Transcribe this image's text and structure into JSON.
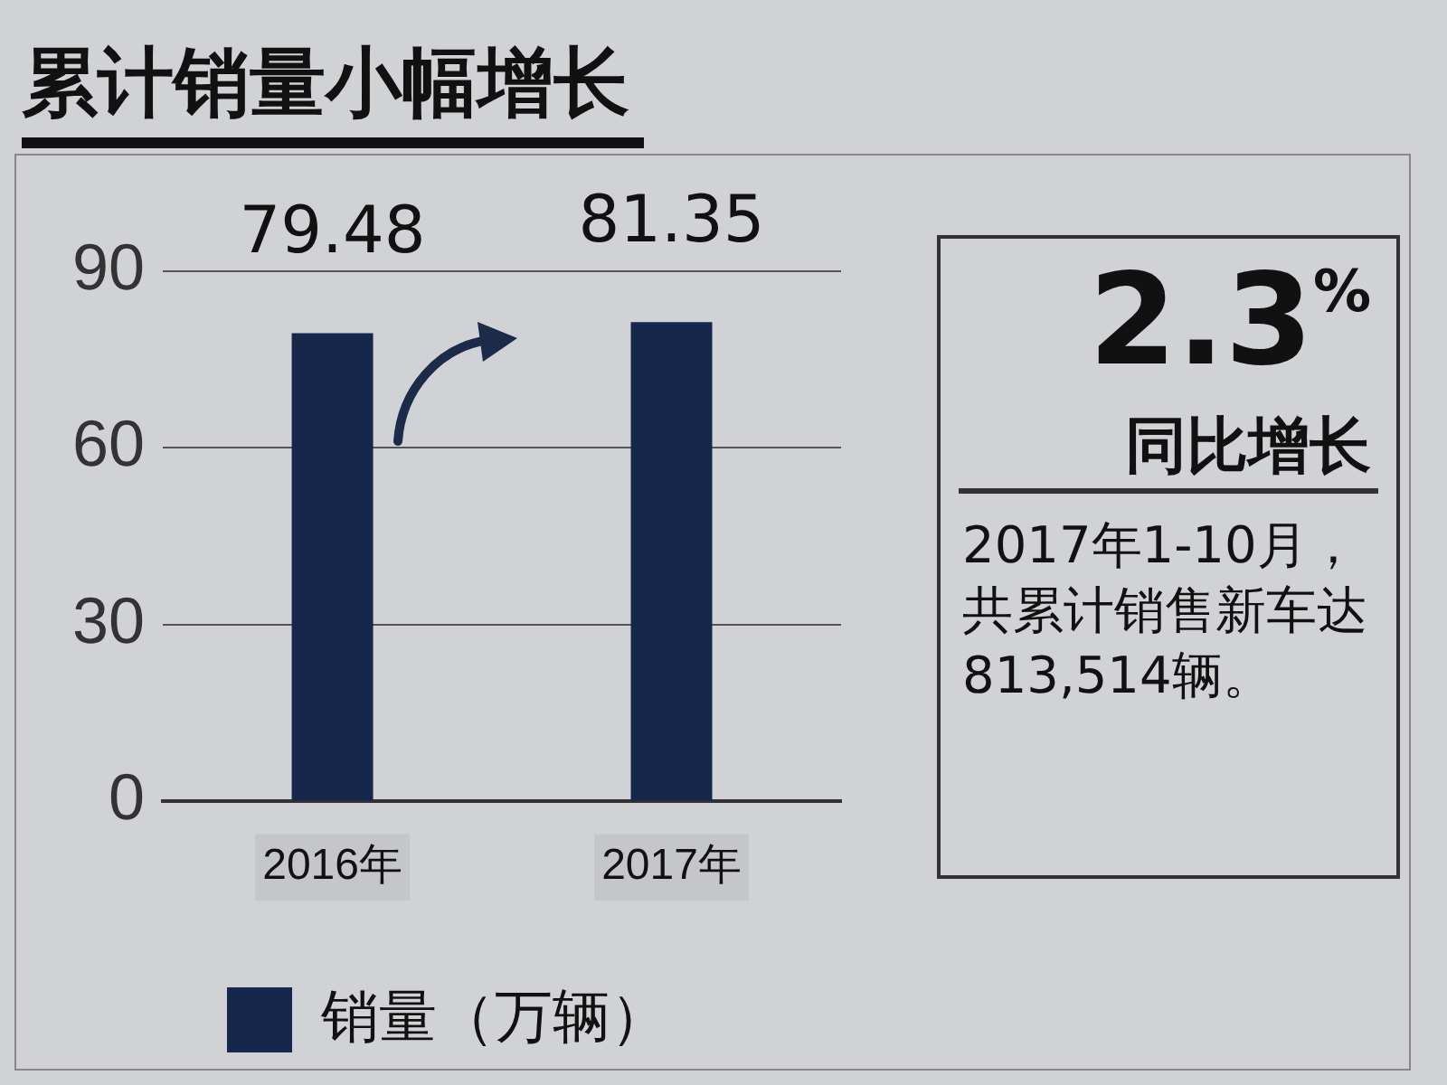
{
  "chart_data": {
    "type": "bar",
    "title": "累计销量小幅增长",
    "categories": [
      "2016年",
      "2017年"
    ],
    "series": [
      {
        "name": "销量（万辆）",
        "color": "#15274a",
        "values": [
          79.48,
          81.35
        ]
      }
    ],
    "ylim": [
      0,
      90
    ],
    "yticks": [
      0,
      30,
      60,
      90
    ],
    "grid": "y",
    "legend": "bottom",
    "data_labels": true,
    "annotations": [
      "2.3$^{%}$",
      "同比增长",
      "2017年1-10月，共累计销售新车达813,514辆。"
    ]
  }
}
